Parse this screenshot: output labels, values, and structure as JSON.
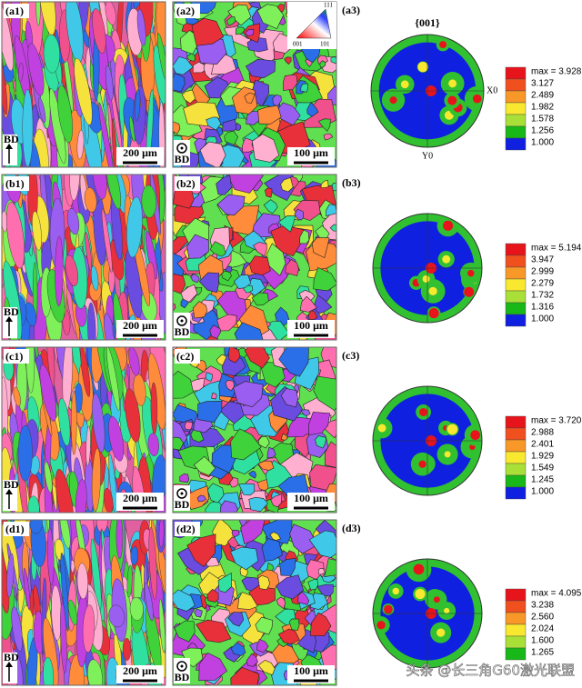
{
  "rows": [
    {
      "panel1": {
        "label": "(a1)",
        "direction": "BD",
        "scale": "200 μm"
      },
      "panel2": {
        "label": "(a2)",
        "direction": "BD",
        "scale": "100 μm"
      },
      "panel3": {
        "label": "(a3)",
        "colorbar": [
          "max = 3.928",
          "3.127",
          "2.489",
          "1.982",
          "1.578",
          "1.256",
          "1.000"
        ]
      }
    },
    {
      "panel1": {
        "label": "(b1)",
        "direction": "BD",
        "scale": "200 μm"
      },
      "panel2": {
        "label": "(b2)",
        "direction": "BD",
        "scale": "100 μm"
      },
      "panel3": {
        "label": "(b3)",
        "colorbar": [
          "max = 5.194",
          "3.947",
          "2.999",
          "2.279",
          "1.732",
          "1.316",
          "1.000"
        ]
      }
    },
    {
      "panel1": {
        "label": "(c1)",
        "direction": "BD",
        "scale": "200 μm"
      },
      "panel2": {
        "label": "(c2)",
        "direction": "BD",
        "scale": "100 μm"
      },
      "panel3": {
        "label": "(c3)",
        "colorbar": [
          "max = 3.720",
          "2.988",
          "2.401",
          "1.929",
          "1.549",
          "1.245",
          "1.000"
        ]
      }
    },
    {
      "panel1": {
        "label": "(d1)",
        "direction": "BD",
        "scale": "200 μm"
      },
      "panel2": {
        "label": "(d2)",
        "direction": "BD",
        "scale": "100 μm"
      },
      "panel3": {
        "label": "(d3)",
        "colorbar": [
          "max = 4.095",
          "3.238",
          "2.560",
          "2.024",
          "1.600",
          "1.265"
        ]
      }
    }
  ],
  "ipf_key": {
    "top": "111",
    "left": "001",
    "right": "101"
  },
  "pole_figure": {
    "title": "{001}",
    "x_axis": "X0",
    "y_axis": "Y0"
  },
  "watermark": "头条 @长三角G60激光联盟"
}
